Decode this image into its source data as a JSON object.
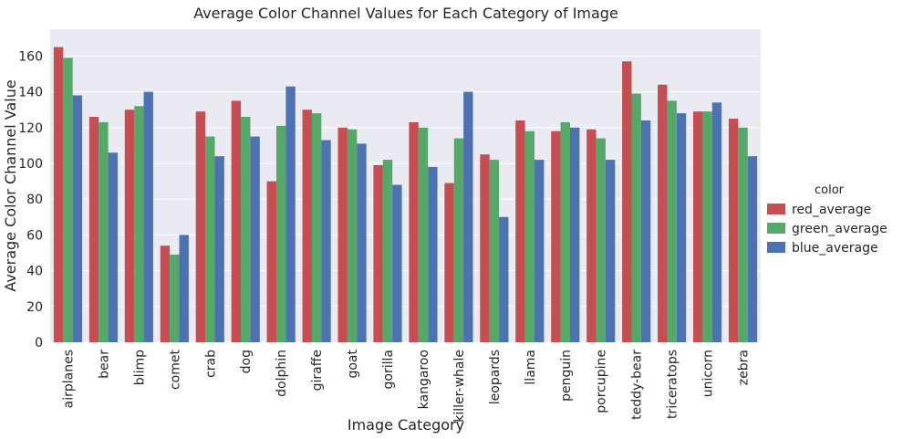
{
  "chart_data": {
    "type": "bar",
    "title": "Average Color Channel Values for Each Category of Image",
    "xlabel": "Image Category",
    "ylabel": "Average Color Channel Value",
    "ylim": [
      0,
      175
    ],
    "yticks": [
      0,
      20,
      40,
      60,
      80,
      100,
      120,
      140,
      160
    ],
    "grid": true,
    "legend_title": "color",
    "legend_position": "right",
    "categories": [
      "airplanes",
      "bear",
      "blimp",
      "comet",
      "crab",
      "dog",
      "dolphin",
      "giraffe",
      "goat",
      "gorilla",
      "kangaroo",
      "killer-whale",
      "leopards",
      "llama",
      "penguin",
      "porcupine",
      "teddy-bear",
      "triceratops",
      "unicorn",
      "zebra"
    ],
    "series": [
      {
        "name": "red_average",
        "color": "#c44e52",
        "values": [
          165,
          126,
          130,
          54,
          129,
          135,
          90,
          130,
          120,
          99,
          123,
          89,
          105,
          124,
          118,
          119,
          157,
          144,
          129,
          125
        ]
      },
      {
        "name": "green_average",
        "color": "#55a868",
        "values": [
          159,
          123,
          132,
          49,
          115,
          126,
          121,
          128,
          119,
          102,
          120,
          114,
          102,
          118,
          123,
          114,
          139,
          135,
          129,
          120
        ]
      },
      {
        "name": "blue_average",
        "color": "#4c72b0",
        "values": [
          138,
          106,
          140,
          60,
          104,
          115,
          143,
          113,
          111,
          88,
          98,
          140,
          70,
          102,
          120,
          102,
          124,
          128,
          134,
          104
        ]
      }
    ]
  }
}
